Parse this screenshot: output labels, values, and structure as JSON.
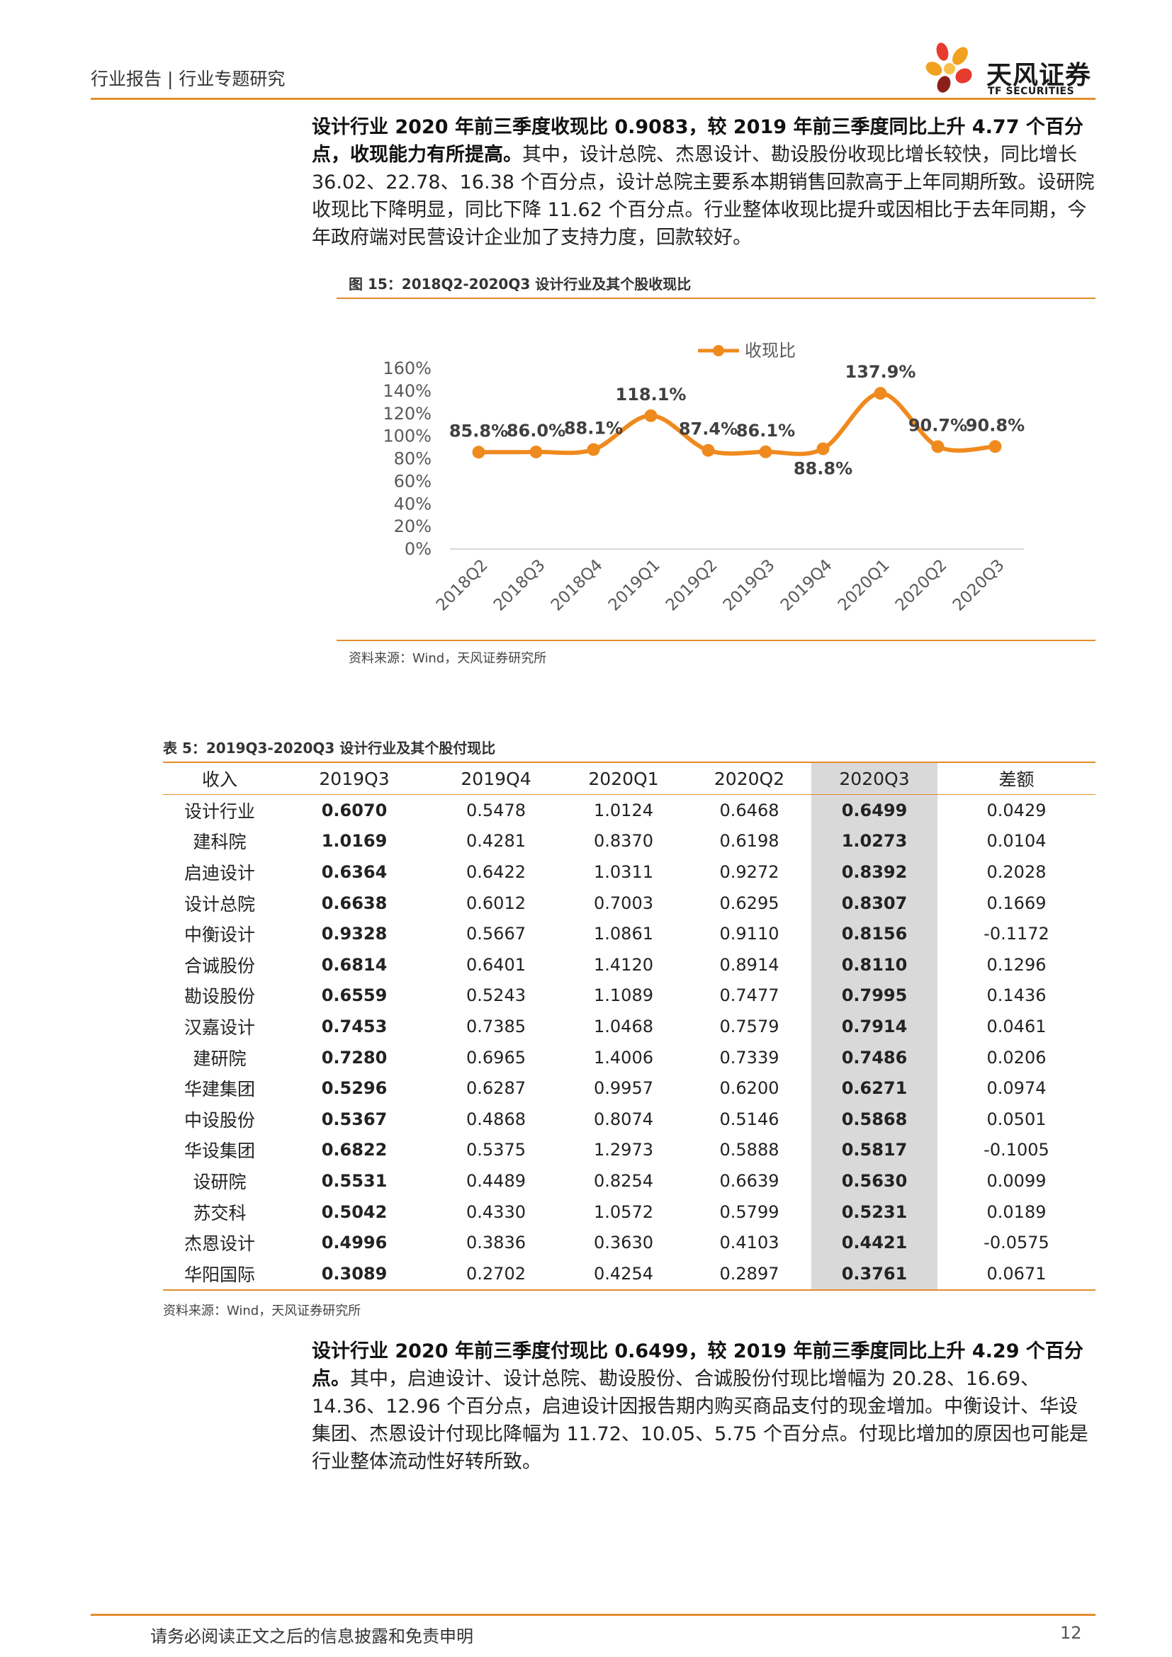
{
  "header": {
    "text": "行业报告 | 行业专题研究"
  },
  "logo": {
    "cn": "天风证券",
    "en": "TF SECURITIES"
  },
  "para1": {
    "bold": "设计行业 2020 年前三季度收现比 0.9083，较 2019 年前三季度同比上升 4.77 个百分点，收现能力有所提高。",
    "normal": "其中，设计总院、杰恩设计、勘设股份收现比增长较快，同比增长 36.02、22.78、16.38 个百分点，设计总院主要系本期销售回款高于上年同期所致。设研院收现比下降明显，同比下降 11.62 个百分点。行业整体收现比提升或因相比于去年同期，今年政府端对民营设计企业加了支持力度，回款较好。"
  },
  "figure": {
    "caption": "图 15：2018Q2-2020Q3 设计行业及其个股收现比",
    "source": "资料来源：Wind，天风证券研究所"
  },
  "chart_data": {
    "type": "line",
    "title": "",
    "categories": [
      "2018Q2",
      "2018Q3",
      "2018Q4",
      "2019Q1",
      "2019Q2",
      "2019Q3",
      "2019Q4",
      "2020Q1",
      "2020Q2",
      "2020Q3"
    ],
    "series": [
      {
        "name": "收现比",
        "values": [
          85.8,
          86.0,
          88.1,
          118.1,
          87.4,
          86.1,
          88.8,
          137.9,
          90.7,
          90.8
        ]
      }
    ],
    "data_labels": [
      "85.8%",
      "86.0%",
      "88.1%",
      "118.1%",
      "87.4%",
      "86.1%",
      "88.8%",
      "137.9%",
      "90.7%",
      "90.8%"
    ],
    "yticks": [
      "0%",
      "20%",
      "40%",
      "60%",
      "80%",
      "100%",
      "120%",
      "140%",
      "160%"
    ],
    "ylim": [
      0,
      160
    ],
    "legend": "top-center",
    "grid": false,
    "color": "#ef8a1e"
  },
  "table": {
    "caption": "表 5：2019Q3-2020Q3 设计行业及其个股付现比",
    "source": "资料来源：Wind，天风证券研究所",
    "headers": [
      "收入",
      "2019Q3",
      "2019Q4",
      "2020Q1",
      "2020Q2",
      "2020Q3",
      "差额"
    ],
    "rows": [
      [
        "设计行业",
        "0.6070",
        "0.5478",
        "1.0124",
        "0.6468",
        "0.6499",
        "0.0429"
      ],
      [
        "建科院",
        "1.0169",
        "0.4281",
        "0.8370",
        "0.6198",
        "1.0273",
        "0.0104"
      ],
      [
        "启迪设计",
        "0.6364",
        "0.6422",
        "1.0311",
        "0.9272",
        "0.8392",
        "0.2028"
      ],
      [
        "设计总院",
        "0.6638",
        "0.6012",
        "0.7003",
        "0.6295",
        "0.8307",
        "0.1669"
      ],
      [
        "中衡设计",
        "0.9328",
        "0.5667",
        "1.0861",
        "0.9110",
        "0.8156",
        "-0.1172"
      ],
      [
        "合诚股份",
        "0.6814",
        "0.6401",
        "1.4120",
        "0.8914",
        "0.8110",
        "0.1296"
      ],
      [
        "勘设股份",
        "0.6559",
        "0.5243",
        "1.1089",
        "0.7477",
        "0.7995",
        "0.1436"
      ],
      [
        "汉嘉设计",
        "0.7453",
        "0.7385",
        "1.0468",
        "0.7579",
        "0.7914",
        "0.0461"
      ],
      [
        "建研院",
        "0.7280",
        "0.6965",
        "1.4006",
        "0.7339",
        "0.7486",
        "0.0206"
      ],
      [
        "华建集团",
        "0.5296",
        "0.6287",
        "0.9957",
        "0.6200",
        "0.6271",
        "0.0974"
      ],
      [
        "中设股份",
        "0.5367",
        "0.4868",
        "0.8074",
        "0.5146",
        "0.5868",
        "0.0501"
      ],
      [
        "华设集团",
        "0.6822",
        "0.5375",
        "1.2973",
        "0.5888",
        "0.5817",
        "-0.1005"
      ],
      [
        "设研院",
        "0.5531",
        "0.4489",
        "0.8254",
        "0.6639",
        "0.5630",
        "0.0099"
      ],
      [
        "苏交科",
        "0.5042",
        "0.4330",
        "1.0572",
        "0.5799",
        "0.5231",
        "0.0189"
      ],
      [
        "杰恩设计",
        "0.4996",
        "0.3836",
        "0.3630",
        "0.4103",
        "0.4421",
        "-0.0575"
      ],
      [
        "华阳国际",
        "0.3089",
        "0.2702",
        "0.4254",
        "0.2897",
        "0.3761",
        "0.0671"
      ]
    ]
  },
  "para2": {
    "bold": "设计行业 2020 年前三季度付现比 0.6499，较 2019 年前三季度同比上升 4.29 个百分点。",
    "normal": "其中，启迪设计、设计总院、勘设股份、合诚股份付现比增幅为 20.28、16.69、14.36、12.96 个百分点，启迪设计因报告期内购买商品支付的现金增加。中衡设计、华设集团、杰恩设计付现比降幅为 11.72、10.05、5.75 个百分点。付现比增加的原因也可能是行业整体流动性好转所致。"
  },
  "footer": {
    "disclaimer": "请务必阅读正文之后的信息披露和免责申明",
    "page": "12"
  }
}
